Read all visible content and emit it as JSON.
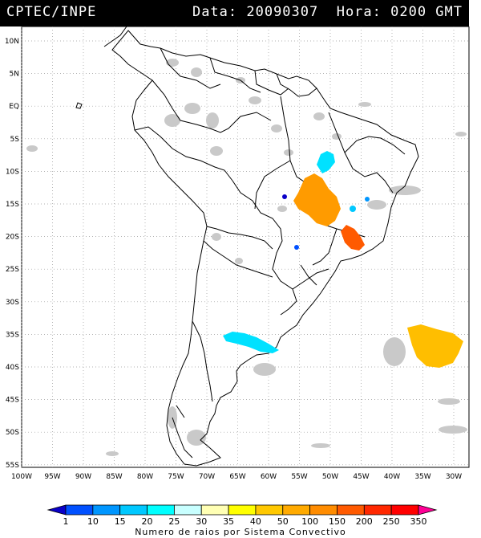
{
  "header": {
    "left_title": "CPTEC/INPE",
    "right_title": "Data: 20090307  Hora: 0200 GMT"
  },
  "map": {
    "lat_labels": [
      "10N",
      "5N",
      "EQ",
      "5S",
      "10S",
      "15S",
      "20S",
      "25S",
      "30S",
      "35S",
      "40S",
      "45S",
      "50S",
      "55S"
    ],
    "lon_labels": [
      "100W",
      "95W",
      "90W",
      "85W",
      "80W",
      "75W",
      "70W",
      "65W",
      "60W",
      "55W",
      "50W",
      "45W",
      "40W",
      "35W",
      "30W"
    ],
    "lat_values": [
      10,
      5,
      0,
      -5,
      -10,
      -15,
      -20,
      -25,
      -30,
      -35,
      -40,
      -45,
      -50,
      -55
    ],
    "lon_values": [
      -100,
      -95,
      -90,
      -85,
      -80,
      -75,
      -70,
      -65,
      -60,
      -55,
      -50,
      -45,
      -40,
      -35,
      -30
    ]
  },
  "legend": {
    "ticks": [
      "1",
      "10",
      "15",
      "20",
      "25",
      "30",
      "35",
      "40",
      "50",
      "100",
      "150",
      "200",
      "250",
      "350"
    ],
    "title": "Numero de raios por Sistema Convectivo",
    "colors": [
      "#0a00c8",
      "#0050ff",
      "#0096ff",
      "#00c8ff",
      "#00ffff",
      "#c8ffff",
      "#ffffb4",
      "#ffff00",
      "#ffc800",
      "#ffaa00",
      "#ff8c00",
      "#ff5a00",
      "#ff2800",
      "#ff0000",
      "#ff0096"
    ]
  },
  "systems": [
    {
      "name": "cyan-system-amazon",
      "color": "#00e1ff",
      "count_class": "25-30"
    },
    {
      "name": "orange-system-central-brazil",
      "color": "#ff9b00",
      "count_class": "100-150"
    },
    {
      "name": "red-orange-system-southeast",
      "color": "#ff5a00",
      "count_class": "150-200"
    },
    {
      "name": "cyan-system-argentina",
      "color": "#00e1ff",
      "count_class": "25-30"
    },
    {
      "name": "yellow-orange-system-atlantic",
      "color": "#ffbe00",
      "count_class": "50-100"
    }
  ]
}
